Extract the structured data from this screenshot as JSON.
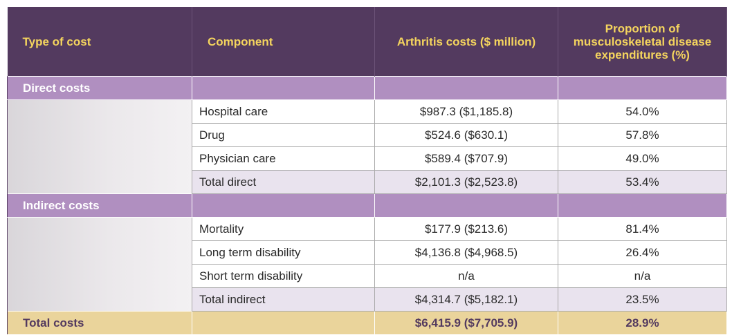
{
  "table": {
    "header": [
      "Type of cost",
      "Component",
      "Arthritis costs ($ million)",
      "Proportion of musculoskeletal disease expenditures (%)"
    ],
    "sections": [
      {
        "title": "Direct costs",
        "rows": [
          [
            "Hospital care",
            "$987.3 ($1,185.8)",
            "54.0%"
          ],
          [
            "Drug",
            "$524.6 ($630.1)",
            "57.8%"
          ],
          [
            "Physician care",
            "$589.4 ($707.9)",
            "49.0%"
          ],
          [
            "Total direct",
            "$2,101.3 ($2,523.8)",
            "53.4%"
          ]
        ]
      },
      {
        "title": "Indirect costs",
        "rows": [
          [
            "Mortality",
            "$177.9 ($213.6)",
            "81.4%"
          ],
          [
            "Long term disability",
            "$4,136.8 ($4,968.5)",
            "26.4%"
          ],
          [
            "Short term disability",
            "n/a",
            "n/a"
          ],
          [
            "Total indirect",
            "$4,314.7 ($5,182.1)",
            "23.5%"
          ]
        ]
      }
    ],
    "total": [
      "Total costs",
      "$6,415.9 ($7,705.9)",
      "28.9%"
    ]
  }
}
